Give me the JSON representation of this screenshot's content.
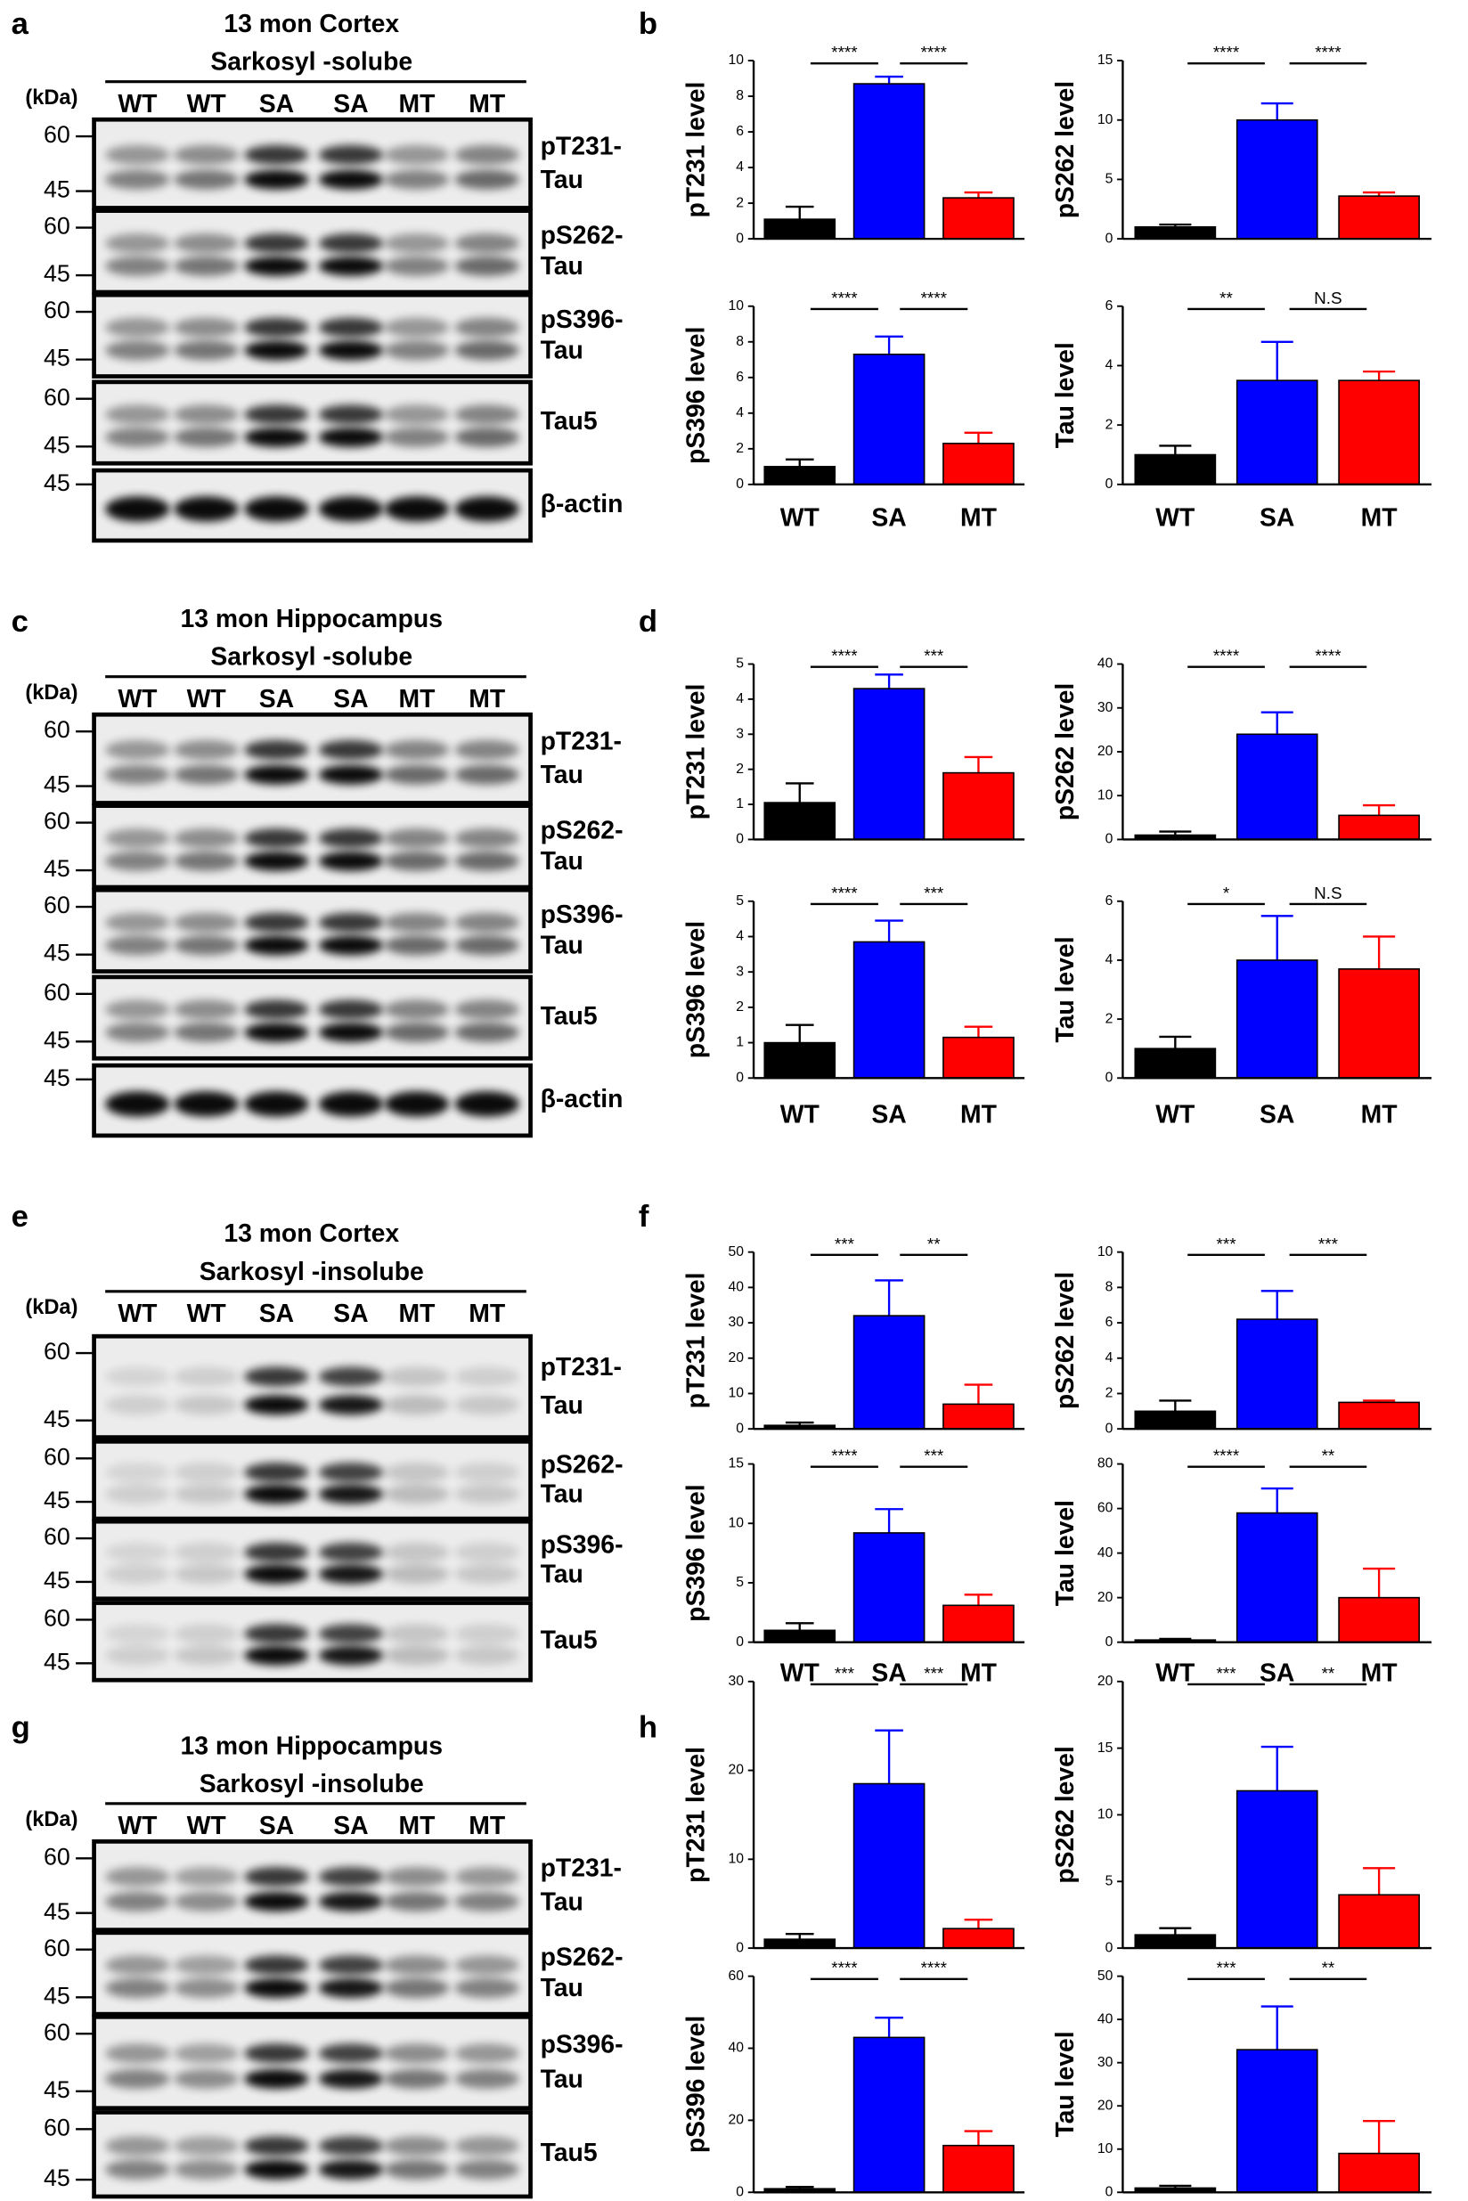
{
  "panel_labels": [
    "a",
    "b",
    "c",
    "d",
    "e",
    "f",
    "g",
    "h"
  ],
  "blots": [
    {
      "title": [
        "13 mon Cortex",
        "Sarkosyl -solube"
      ],
      "unit": "(kDa)",
      "lanes": [
        "WT",
        "WT",
        "SA",
        "SA",
        "MT",
        "MT"
      ],
      "rows": [
        {
          "markers": [
            60,
            45
          ],
          "label": [
            "pT231-",
            "Tau"
          ]
        },
        {
          "markers": [
            60,
            45
          ],
          "label": [
            "pS262-",
            "Tau"
          ]
        },
        {
          "markers": [
            60,
            45
          ],
          "label": [
            "pS396-",
            "Tau"
          ]
        },
        {
          "markers": [
            60,
            45
          ],
          "label": [
            "Tau5"
          ]
        },
        {
          "markers": [
            45
          ],
          "label": [
            "β-actin"
          ]
        }
      ]
    },
    {
      "title": [
        "13 mon Hippocampus",
        "Sarkosyl -solube"
      ],
      "unit": "(kDa)",
      "lanes": [
        "WT",
        "WT",
        "SA",
        "SA",
        "MT",
        "MT"
      ],
      "rows": [
        {
          "markers": [
            60,
            45
          ],
          "label": [
            "pT231-",
            "Tau"
          ]
        },
        {
          "markers": [
            60,
            45
          ],
          "label": [
            "pS262-",
            "Tau"
          ]
        },
        {
          "markers": [
            60,
            45
          ],
          "label": [
            "pS396-",
            "Tau"
          ]
        },
        {
          "markers": [
            60,
            45
          ],
          "label": [
            "Tau5"
          ]
        },
        {
          "markers": [
            45
          ],
          "label": [
            "β-actin"
          ]
        }
      ]
    },
    {
      "title": [
        "13 mon Cortex",
        "Sarkosyl -insolube"
      ],
      "unit": "(kDa)",
      "lanes": [
        "WT",
        "WT",
        "SA",
        "SA",
        "MT",
        "MT"
      ],
      "rows": [
        {
          "markers": [
            60,
            45
          ],
          "label": [
            "pT231-",
            "Tau"
          ]
        },
        {
          "markers": [
            60,
            45
          ],
          "label": [
            "pS262-",
            "Tau"
          ]
        },
        {
          "markers": [
            60,
            45
          ],
          "label": [
            "pS396-",
            "Tau"
          ]
        },
        {
          "markers": [
            60,
            45
          ],
          "label": [
            "Tau5"
          ]
        }
      ]
    },
    {
      "title": [
        "13 mon Hippocampus",
        "Sarkosyl -insolube"
      ],
      "unit": "(kDa)",
      "lanes": [
        "WT",
        "WT",
        "SA",
        "SA",
        "MT",
        "MT"
      ],
      "rows": [
        {
          "markers": [
            60,
            45
          ],
          "label": [
            "pT231-",
            "Tau"
          ]
        },
        {
          "markers": [
            60,
            45
          ],
          "label": [
            "pS262-",
            "Tau"
          ]
        },
        {
          "markers": [
            60,
            45
          ],
          "label": [
            "pS396-",
            "Tau"
          ]
        },
        {
          "markers": [
            60,
            45
          ],
          "label": [
            "Tau5"
          ]
        }
      ]
    }
  ],
  "chart_data": [
    {
      "type": "bar",
      "ylabel": "pT231 level",
      "categories": [
        null,
        null,
        null
      ],
      "values": [
        1.1,
        8.7,
        2.3
      ],
      "errors": [
        0.7,
        0.4,
        0.3
      ],
      "colors": [
        "#000000",
        "#0000ff",
        "#ff0000"
      ],
      "ylim": [
        0,
        10
      ],
      "yticks": [
        0,
        2,
        4,
        6,
        8,
        10
      ],
      "significance": [
        "****",
        "****"
      ]
    },
    {
      "type": "bar",
      "ylabel": "pS262 level",
      "categories": [
        null,
        null,
        null
      ],
      "values": [
        1.0,
        10,
        3.6
      ],
      "errors": [
        0.2,
        1.4,
        0.3
      ],
      "colors": [
        "#000000",
        "#0000ff",
        "#ff0000"
      ],
      "ylim": [
        0,
        15
      ],
      "yticks": [
        0,
        5,
        10,
        15
      ],
      "significance": [
        "****",
        "****"
      ]
    },
    {
      "type": "bar",
      "ylabel": "pS396 level",
      "categories": [
        "WT",
        "SA",
        "MT"
      ],
      "values": [
        1.0,
        7.3,
        2.3
      ],
      "errors": [
        0.4,
        1.0,
        0.6
      ],
      "colors": [
        "#000000",
        "#0000ff",
        "#ff0000"
      ],
      "ylim": [
        0,
        10
      ],
      "yticks": [
        0,
        2,
        4,
        6,
        8,
        10
      ],
      "significance": [
        "****",
        "****"
      ]
    },
    {
      "type": "bar",
      "ylabel": "Tau level",
      "categories": [
        "WT",
        "SA",
        "MT"
      ],
      "values": [
        1.0,
        3.5,
        3.5
      ],
      "errors": [
        0.3,
        1.3,
        0.3
      ],
      "colors": [
        "#000000",
        "#0000ff",
        "#ff0000"
      ],
      "ylim": [
        0,
        6
      ],
      "yticks": [
        0,
        2,
        4,
        6
      ],
      "significance": [
        "**",
        "N.S"
      ]
    },
    {
      "type": "bar",
      "ylabel": "pT231 level",
      "categories": [
        null,
        null,
        null
      ],
      "values": [
        1.05,
        4.3,
        1.9
      ],
      "errors": [
        0.55,
        0.4,
        0.45
      ],
      "colors": [
        "#000000",
        "#0000ff",
        "#ff0000"
      ],
      "ylim": [
        0,
        5
      ],
      "yticks": [
        0,
        1,
        2,
        3,
        4,
        5
      ],
      "significance": [
        "****",
        "***"
      ]
    },
    {
      "type": "bar",
      "ylabel": "pS262 level",
      "categories": [
        null,
        null,
        null
      ],
      "values": [
        1.0,
        24,
        5.5
      ],
      "errors": [
        0.8,
        5,
        2.3
      ],
      "colors": [
        "#000000",
        "#0000ff",
        "#ff0000"
      ],
      "ylim": [
        0,
        40
      ],
      "yticks": [
        0,
        10,
        20,
        30,
        40
      ],
      "significance": [
        "****",
        "****"
      ]
    },
    {
      "type": "bar",
      "ylabel": "pS396 level",
      "categories": [
        "WT",
        "SA",
        "MT"
      ],
      "values": [
        1.0,
        3.85,
        1.15
      ],
      "errors": [
        0.5,
        0.6,
        0.3
      ],
      "colors": [
        "#000000",
        "#0000ff",
        "#ff0000"
      ],
      "ylim": [
        0,
        5
      ],
      "yticks": [
        0,
        1,
        2,
        3,
        4,
        5
      ],
      "significance": [
        "****",
        "***"
      ]
    },
    {
      "type": "bar",
      "ylabel": "Tau level",
      "categories": [
        "WT",
        "SA",
        "MT"
      ],
      "values": [
        1.0,
        4.0,
        3.7
      ],
      "errors": [
        0.4,
        1.5,
        1.1
      ],
      "colors": [
        "#000000",
        "#0000ff",
        "#ff0000"
      ],
      "ylim": [
        0,
        6
      ],
      "yticks": [
        0,
        2,
        4,
        6
      ],
      "significance": [
        "*",
        "N.S"
      ]
    },
    {
      "type": "bar",
      "ylabel": "pT231 level",
      "categories": [
        null,
        null,
        null
      ],
      "values": [
        1.0,
        32,
        7
      ],
      "errors": [
        0.8,
        10,
        5.5
      ],
      "colors": [
        "#000000",
        "#0000ff",
        "#ff0000"
      ],
      "ylim": [
        0,
        50
      ],
      "yticks": [
        0,
        10,
        20,
        30,
        40,
        50
      ],
      "significance": [
        "***",
        "**"
      ]
    },
    {
      "type": "bar",
      "ylabel": "pS262 level",
      "categories": [
        null,
        null,
        null
      ],
      "values": [
        1.0,
        6.2,
        1.5
      ],
      "errors": [
        0.6,
        1.6,
        0.1
      ],
      "colors": [
        "#000000",
        "#0000ff",
        "#ff0000"
      ],
      "ylim": [
        0,
        10
      ],
      "yticks": [
        0,
        2,
        4,
        6,
        8,
        10
      ],
      "significance": [
        "***",
        "***"
      ]
    },
    {
      "type": "bar",
      "ylabel": "pS396 level",
      "categories": [
        "WT",
        "SA",
        "MT"
      ],
      "values": [
        1.0,
        9.2,
        3.1
      ],
      "errors": [
        0.6,
        2,
        0.9
      ],
      "colors": [
        "#000000",
        "#0000ff",
        "#ff0000"
      ],
      "ylim": [
        0,
        15
      ],
      "yticks": [
        0,
        5,
        10,
        15
      ],
      "significance": [
        "****",
        "***"
      ]
    },
    {
      "type": "bar",
      "ylabel": "Tau level",
      "categories": [
        "WT",
        "SA",
        "MT"
      ],
      "values": [
        1,
        58,
        20
      ],
      "errors": [
        0.5,
        11,
        13
      ],
      "colors": [
        "#000000",
        "#0000ff",
        "#ff0000"
      ],
      "ylim": [
        0,
        80
      ],
      "yticks": [
        0,
        20,
        40,
        60,
        80
      ],
      "significance": [
        "****",
        "**"
      ]
    },
    {
      "type": "bar",
      "ylabel": "pT231 level",
      "categories": [
        null,
        null,
        null
      ],
      "values": [
        1.0,
        18.5,
        2.2
      ],
      "errors": [
        0.6,
        6,
        1
      ],
      "colors": [
        "#000000",
        "#0000ff",
        "#ff0000"
      ],
      "ylim": [
        0,
        30
      ],
      "yticks": [
        0,
        10,
        20,
        30
      ],
      "significance": [
        "***",
        "***"
      ]
    },
    {
      "type": "bar",
      "ylabel": "pS262 level",
      "categories": [
        null,
        null,
        null
      ],
      "values": [
        1,
        11.8,
        4
      ],
      "errors": [
        0.5,
        3.3,
        2
      ],
      "colors": [
        "#000000",
        "#0000ff",
        "#ff0000"
      ],
      "ylim": [
        0,
        20
      ],
      "yticks": [
        0,
        5,
        10,
        15,
        20
      ],
      "significance": [
        "***",
        "**"
      ]
    },
    {
      "type": "bar",
      "ylabel": "pS396 level",
      "categories": [
        "WT",
        "SA",
        "MT"
      ],
      "values": [
        1,
        43,
        13
      ],
      "errors": [
        0.5,
        5.5,
        4
      ],
      "colors": [
        "#000000",
        "#0000ff",
        "#ff0000"
      ],
      "ylim": [
        0,
        60
      ],
      "yticks": [
        0,
        20,
        40,
        60
      ],
      "significance": [
        "****",
        "****"
      ]
    },
    {
      "type": "bar",
      "ylabel": "Tau level",
      "categories": [
        "WT",
        "SA",
        "MT"
      ],
      "values": [
        1,
        33,
        9
      ],
      "errors": [
        0.5,
        10,
        7.5
      ],
      "colors": [
        "#000000",
        "#0000ff",
        "#ff0000"
      ],
      "ylim": [
        0,
        50
      ],
      "yticks": [
        0,
        10,
        20,
        30,
        40,
        50
      ],
      "significance": [
        "***",
        "**"
      ]
    }
  ]
}
